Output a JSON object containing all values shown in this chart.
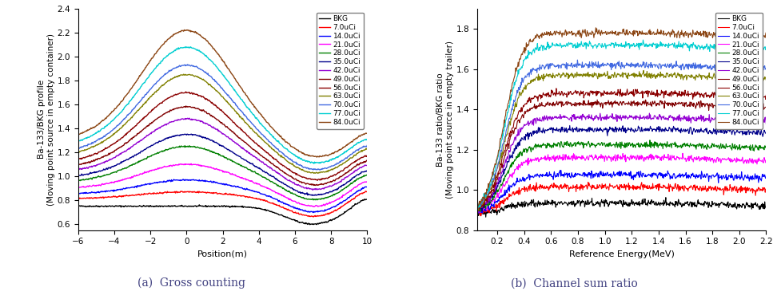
{
  "labels": [
    "BKG",
    "7.0uCi",
    "14.0uCi",
    "21.0uCi",
    "28.0uCi",
    "35.0uCi",
    "42.0uCi",
    "49.0uCi",
    "56.0uCi",
    "63.0uCi",
    "70.0uCi",
    "77.0uCi",
    "84.0uCi"
  ],
  "colors": [
    "#000000",
    "#ff0000",
    "#0000ff",
    "#ff00ff",
    "#008000",
    "#00008b",
    "#9400d3",
    "#800000",
    "#8b0000",
    "#808000",
    "#4169e1",
    "#00ced1",
    "#8b4513"
  ],
  "left_ylabel": "Ba-133/BKG profile\n(Moving point source in empty container)",
  "left_xlabel": "Position(m)",
  "left_xlim": [
    -6,
    10
  ],
  "left_ylim": [
    0.55,
    2.4
  ],
  "left_yticks": [
    0.6,
    0.8,
    1.0,
    1.2,
    1.4,
    1.6,
    1.8,
    2.0,
    2.2,
    2.4
  ],
  "left_xticks": [
    -6,
    -4,
    -2,
    0,
    2,
    4,
    6,
    8,
    10
  ],
  "right_ylabel": "Ba-133 ratio/BKG ratio\n(Moving point source in empty trailer)",
  "right_xlabel": "Reference Energy(MeV)",
  "right_xlim": [
    0.05,
    2.2
  ],
  "right_ylim": [
    0.8,
    1.9
  ],
  "right_yticks": [
    0.8,
    1.0,
    1.2,
    1.4,
    1.6,
    1.8
  ],
  "right_xticks": [
    0.2,
    0.4,
    0.6,
    0.8,
    1.0,
    1.2,
    1.4,
    1.6,
    1.8,
    2.0,
    2.2
  ],
  "caption_left": "(a)  Gross counting",
  "caption_right": "(b)  Channel sum ratio",
  "peak_heights_left": [
    0.75,
    0.87,
    0.97,
    1.1,
    1.25,
    1.35,
    1.48,
    1.58,
    1.7,
    1.85,
    1.93,
    2.08,
    2.22
  ],
  "plateau_heights_right": [
    0.935,
    1.015,
    1.075,
    1.16,
    1.225,
    1.3,
    1.36,
    1.43,
    1.48,
    1.57,
    1.62,
    1.72,
    1.78
  ]
}
